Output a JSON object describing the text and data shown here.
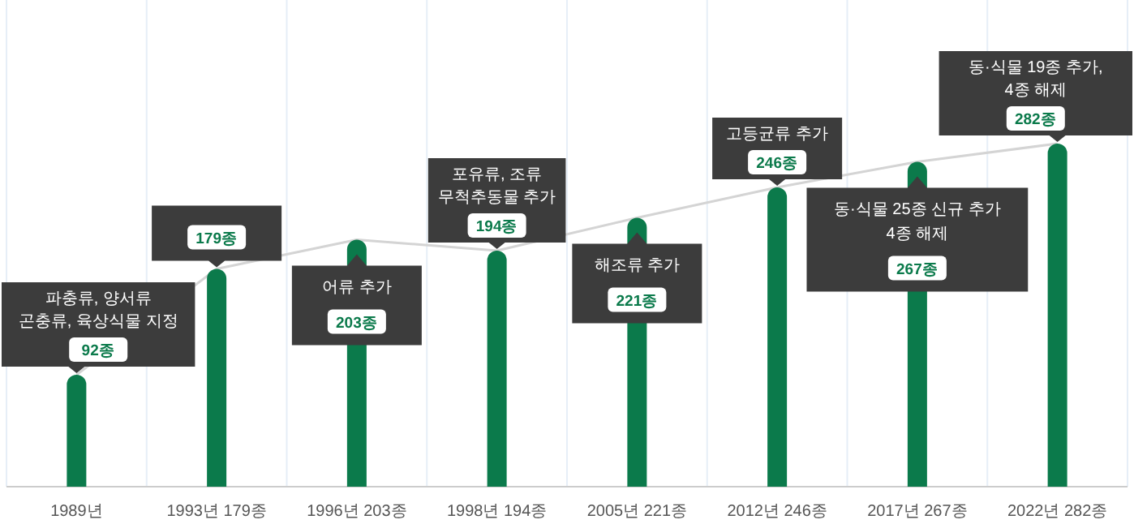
{
  "chart_data": {
    "type": "bar",
    "categories": [
      "1989년",
      "1993년 179종",
      "1996년 203종",
      "1998년 194종",
      "2005년 221종",
      "2012년 246종",
      "2017년 267종",
      "2022년 282종"
    ],
    "ylim": [
      0,
      400
    ],
    "grid": "x",
    "tick_labels": "x",
    "series": [
      {
        "type": "line",
        "color": "#d4d4d4",
        "values": [
          92,
          179,
          203,
          194,
          221,
          246,
          267,
          282
        ]
      },
      {
        "color": "#0b7a4b",
        "values": [
          92,
          179,
          203,
          194,
          221,
          246,
          267,
          282
        ],
        "value_labels": [
          "92종",
          "179종",
          "203종",
          "194종",
          "221종",
          "246종",
          "267종",
          "282종"
        ]
      }
    ],
    "annotations": [
      {
        "text": "파충류, 양서류\n곤충류, 육상식물 지정",
        "x": "1989년",
        "y": 92
      },
      {
        "text": "어류 추가",
        "x": "1996년 203종",
        "y": 203
      },
      {
        "text": "포유류, 조류\n무척추동물 추가",
        "x": "1998년 194종",
        "y": 194
      },
      {
        "text": "해조류 추가",
        "x": "2005년 221종",
        "y": 221
      },
      {
        "text": "고등균류 추가",
        "x": "2012년 246종",
        "y": 246
      },
      {
        "text": "동·식물 25종 신규 추가\n4종 해제",
        "x": "2017년 267종",
        "y": 267
      },
      {
        "text": "동·식물 19종 추가,\n4종 해제",
        "x": "2022년 282종",
        "y": 282
      }
    ]
  }
}
